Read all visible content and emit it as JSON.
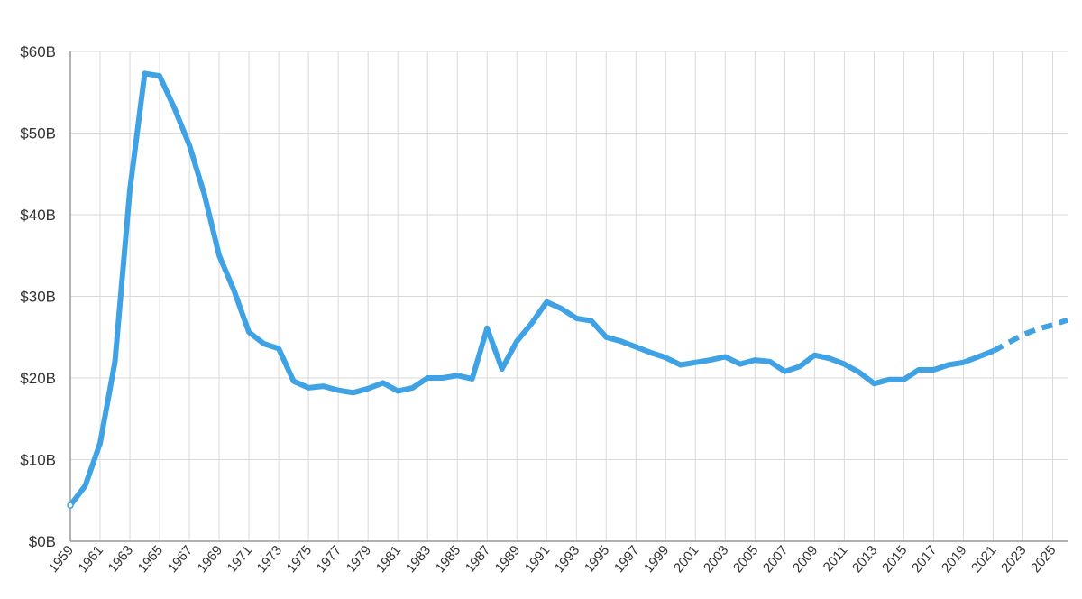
{
  "chart_data": {
    "type": "line",
    "title": "",
    "xlabel": "",
    "ylabel": "",
    "xlim": [
      1959,
      2026
    ],
    "ylim": [
      0,
      60
    ],
    "y_ticks": [
      0,
      10,
      20,
      30,
      40,
      50,
      60
    ],
    "y_tick_labels": [
      "$0B",
      "$10B",
      "$20B",
      "$30B",
      "$40B",
      "$50B",
      "$60B"
    ],
    "x_tick_labels": [
      "1959",
      "1961",
      "1963",
      "1965",
      "1967",
      "1969",
      "1971",
      "1973",
      "1975",
      "1977",
      "1979",
      "1981",
      "1983",
      "1985",
      "1987",
      "1989",
      "1991",
      "1993",
      "1995",
      "1997",
      "1999",
      "2001",
      "2003",
      "2005",
      "2007",
      "2009",
      "2011",
      "2013",
      "2015",
      "2017",
      "2019",
      "2021",
      "2023",
      "2025"
    ],
    "grid": true,
    "legend": "none",
    "series": [
      {
        "style": "solid",
        "color": "#3fa2e4",
        "x": [
          1959,
          1960,
          1961,
          1962,
          1963,
          1964,
          1965,
          1966,
          1967,
          1968,
          1969,
          1970,
          1971,
          1972,
          1973,
          1974,
          1975,
          1976,
          1977,
          1978,
          1979,
          1980,
          1981,
          1982,
          1983,
          1984,
          1985,
          1986,
          1987,
          1988,
          1989,
          1990,
          1991,
          1992,
          1993,
          1994,
          1995,
          1996,
          1997,
          1998,
          1999,
          2000,
          2001,
          2002,
          2003,
          2004,
          2005,
          2006,
          2007,
          2008,
          2009,
          2010,
          2011,
          2012,
          2013,
          2014,
          2015,
          2016,
          2017,
          2018,
          2019,
          2020,
          2021
        ],
        "values": [
          4.4,
          6.8,
          12,
          22,
          43,
          57.3,
          57,
          53,
          48.5,
          42.5,
          35,
          30.7,
          25.6,
          24.2,
          23.6,
          19.6,
          18.8,
          19,
          18.5,
          18.2,
          18.7,
          19.4,
          18.4,
          18.8,
          20,
          20,
          20.3,
          19.9,
          26.1,
          21.1,
          24.5,
          26.7,
          29.3,
          28.5,
          27.3,
          27,
          25,
          24.5,
          23.8,
          23.1,
          22.5,
          21.6,
          21.9,
          22.2,
          22.6,
          21.7,
          22.2,
          22,
          20.8,
          21.4,
          22.8,
          22.4,
          21.7,
          20.7,
          19.3,
          19.8,
          19.8,
          21,
          21,
          21.6,
          21.9,
          22.6,
          23.3
        ]
      },
      {
        "style": "dashed",
        "color": "#3fa2e4",
        "x": [
          2021,
          2022,
          2023,
          2024,
          2025,
          2026
        ],
        "values": [
          23.3,
          24.3,
          25.3,
          26,
          26.5,
          27.1
        ]
      }
    ]
  },
  "colors": {
    "line": "#3fa2e4",
    "grid": "#d9d9d9",
    "axis": "#999999",
    "text": "#333333"
  }
}
